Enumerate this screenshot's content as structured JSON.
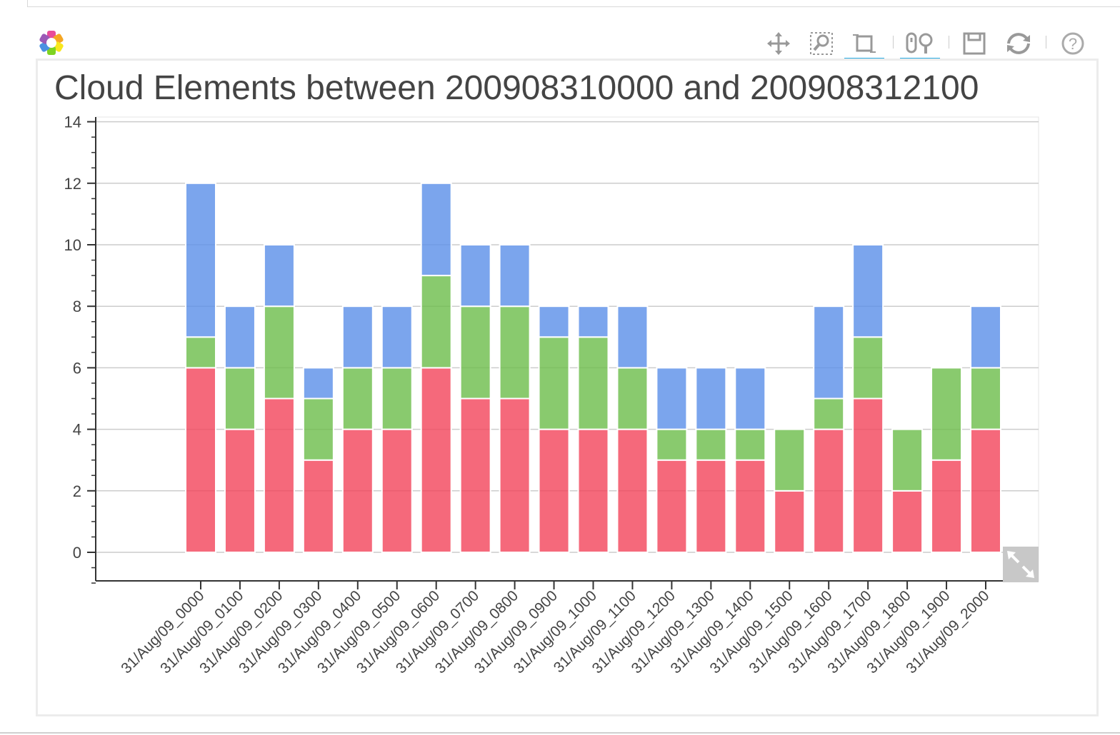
{
  "toolbar": {
    "tools": [
      {
        "name": "pan-icon",
        "active": false
      },
      {
        "name": "box-zoom-icon",
        "active": false
      },
      {
        "name": "resize-icon",
        "active": true
      },
      {
        "name": "wheel-zoom-icon",
        "active": true
      },
      {
        "name": "save-icon",
        "active": false
      },
      {
        "name": "reset-icon",
        "active": false
      },
      {
        "name": "help-icon",
        "active": false
      }
    ],
    "help_glyph": "?"
  },
  "colors": {
    "red": "#f2445a",
    "green": "#6cbd4a",
    "blue": "#5a8ee8",
    "grid": "#cccccc",
    "text": "#444444",
    "accent": "#26aae1"
  },
  "chart_data": {
    "type": "bar",
    "stacked": true,
    "title": "Cloud Elements between 200908310000 and 200908312100",
    "xlabel": "",
    "ylabel": "",
    "ylim": [
      -1,
      14
    ],
    "yticks": [
      "0",
      "2",
      "4",
      "6",
      "8",
      "10",
      "12",
      "14"
    ],
    "grid": true,
    "categories": [
      "31/Aug/09_0000",
      "31/Aug/09_0100",
      "31/Aug/09_0200",
      "31/Aug/09_0300",
      "31/Aug/09_0400",
      "31/Aug/09_0500",
      "31/Aug/09_0600",
      "31/Aug/09_0700",
      "31/Aug/09_0800",
      "31/Aug/09_0900",
      "31/Aug/09_1000",
      "31/Aug/09_1100",
      "31/Aug/09_1200",
      "31/Aug/09_1300",
      "31/Aug/09_1400",
      "31/Aug/09_1500",
      "31/Aug/09_1600",
      "31/Aug/09_1700",
      "31/Aug/09_1800",
      "31/Aug/09_1900",
      "31/Aug/09_2000"
    ],
    "series": [
      {
        "color": "#f2445a",
        "values": [
          6,
          4,
          5,
          3,
          4,
          4,
          6,
          5,
          5,
          4,
          4,
          4,
          3,
          3,
          3,
          2,
          4,
          5,
          2,
          3,
          4
        ]
      },
      {
        "color": "#6cbd4a",
        "values": [
          1,
          2,
          3,
          2,
          2,
          2,
          3,
          3,
          3,
          3,
          3,
          2,
          1,
          1,
          1,
          2,
          1,
          2,
          2,
          3,
          2
        ]
      },
      {
        "color": "#5a8ee8",
        "values": [
          5,
          2,
          2,
          1,
          2,
          2,
          3,
          2,
          2,
          1,
          1,
          2,
          2,
          2,
          2,
          0,
          3,
          3,
          0,
          0,
          2
        ]
      }
    ]
  }
}
